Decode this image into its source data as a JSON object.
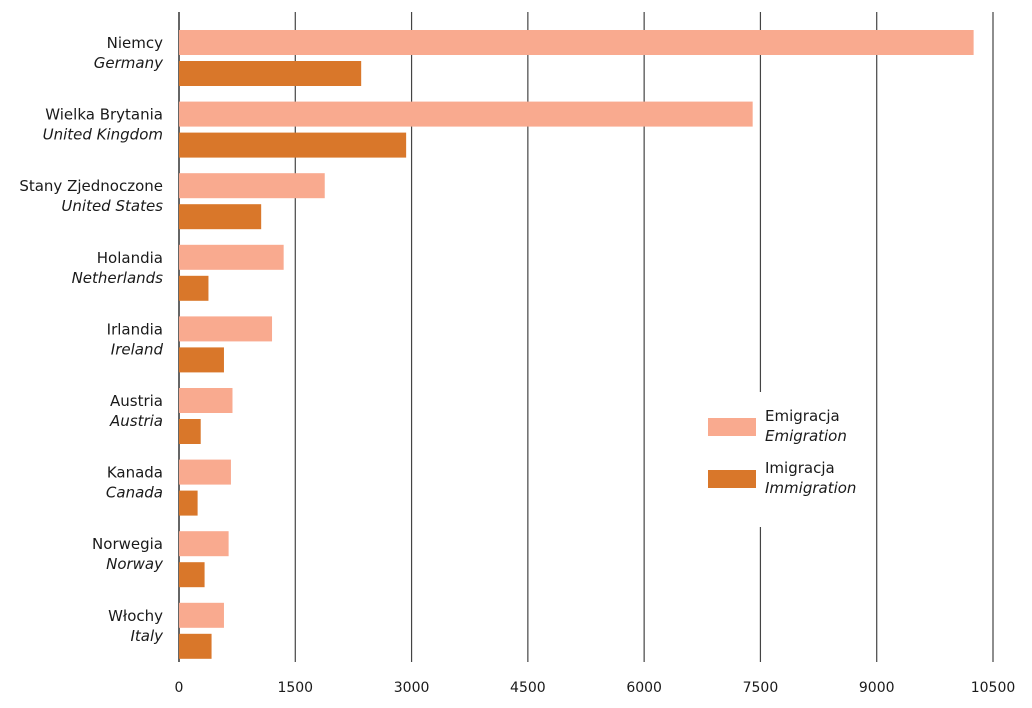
{
  "chart_data": {
    "type": "bar",
    "orientation": "horizontal",
    "categories": [
      {
        "pl": "Niemcy",
        "en": "Germany"
      },
      {
        "pl": "Wielka Brytania",
        "en": "United Kingdom"
      },
      {
        "pl": "Stany Zjednoczone",
        "en": "United States"
      },
      {
        "pl": "Holandia",
        "en": "Netherlands"
      },
      {
        "pl": "Irlandia",
        "en": "Ireland"
      },
      {
        "pl": "Austria",
        "en": "Austria"
      },
      {
        "pl": "Kanada",
        "en": "Canada"
      },
      {
        "pl": "Norwegia",
        "en": "Norway"
      },
      {
        "pl": "Włochy",
        "en": "Italy"
      }
    ],
    "series": [
      {
        "name_pl": "Emigracja",
        "name_en": "Emigration",
        "color": "#f9aa8f",
        "values": [
          10250,
          7400,
          1880,
          1350,
          1200,
          690,
          670,
          640,
          580
        ]
      },
      {
        "name_pl": "Imigracja",
        "name_en": "Immigration",
        "color": "#d9772a",
        "values": [
          2350,
          2930,
          1060,
          380,
          580,
          280,
          240,
          330,
          420
        ]
      }
    ],
    "xlim": [
      0,
      10500
    ],
    "xticks": [
      "0",
      "1500",
      "3000",
      "4500",
      "6000",
      "7500",
      "9000",
      "10500"
    ],
    "grid": "vertical",
    "legend_position": "right"
  }
}
